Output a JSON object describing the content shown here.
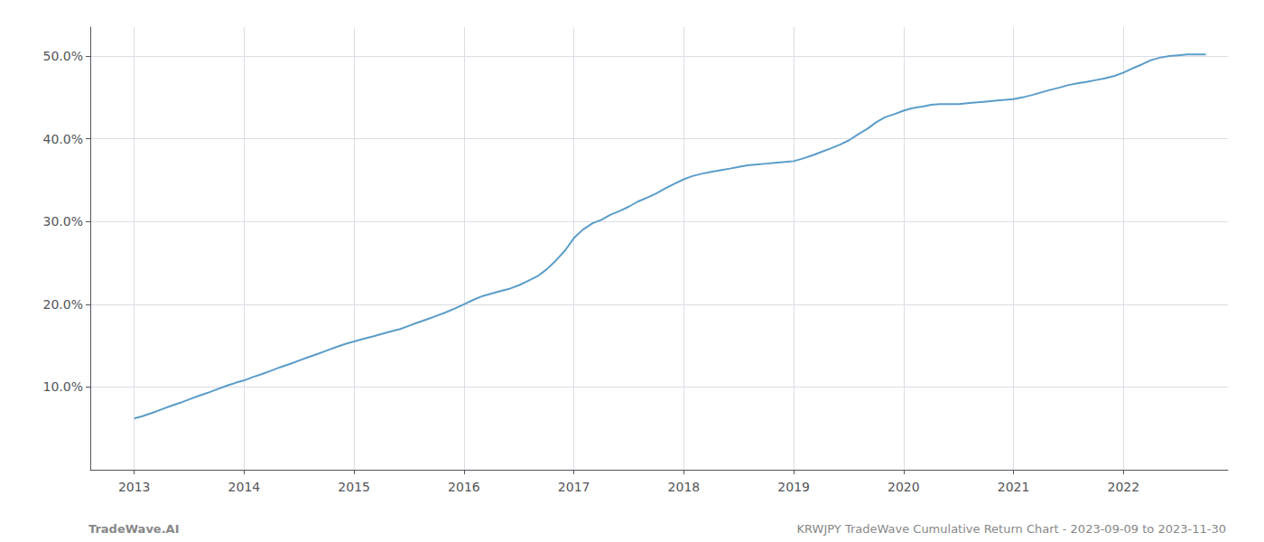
{
  "chart_data": {
    "type": "line",
    "x": [
      2013.0,
      2013.08,
      2013.17,
      2013.25,
      2013.33,
      2013.42,
      2013.5,
      2013.58,
      2013.67,
      2013.75,
      2013.83,
      2013.92,
      2014.0,
      2014.08,
      2014.17,
      2014.25,
      2014.33,
      2014.42,
      2014.5,
      2014.58,
      2014.67,
      2014.75,
      2014.83,
      2014.92,
      2015.0,
      2015.08,
      2015.17,
      2015.25,
      2015.33,
      2015.42,
      2015.5,
      2015.58,
      2015.67,
      2015.75,
      2015.83,
      2015.92,
      2016.0,
      2016.08,
      2016.17,
      2016.25,
      2016.33,
      2016.42,
      2016.5,
      2016.58,
      2016.67,
      2016.75,
      2016.83,
      2016.92,
      2017.0,
      2017.08,
      2017.17,
      2017.25,
      2017.33,
      2017.42,
      2017.5,
      2017.58,
      2017.67,
      2017.75,
      2017.83,
      2017.92,
      2018.0,
      2018.08,
      2018.17,
      2018.25,
      2018.33,
      2018.42,
      2018.5,
      2018.58,
      2018.67,
      2018.75,
      2018.83,
      2018.92,
      2019.0,
      2019.08,
      2019.17,
      2019.25,
      2019.33,
      2019.42,
      2019.5,
      2019.58,
      2019.67,
      2019.75,
      2019.83,
      2019.92,
      2020.0,
      2020.08,
      2020.17,
      2020.25,
      2020.33,
      2020.42,
      2020.5,
      2020.58,
      2020.67,
      2020.75,
      2020.83,
      2020.92,
      2021.0,
      2021.08,
      2021.17,
      2021.25,
      2021.33,
      2021.42,
      2021.5,
      2021.58,
      2021.67,
      2021.75,
      2021.83,
      2021.92,
      2022.0,
      2022.08,
      2022.17,
      2022.25,
      2022.33,
      2022.42,
      2022.5,
      2022.58,
      2022.67,
      2022.75
    ],
    "values": [
      6.2,
      6.5,
      6.9,
      7.3,
      7.7,
      8.1,
      8.5,
      8.9,
      9.3,
      9.7,
      10.1,
      10.5,
      10.8,
      11.2,
      11.6,
      12.0,
      12.4,
      12.8,
      13.2,
      13.6,
      14.0,
      14.4,
      14.8,
      15.2,
      15.5,
      15.8,
      16.1,
      16.4,
      16.7,
      17.0,
      17.4,
      17.8,
      18.2,
      18.6,
      19.0,
      19.5,
      20.0,
      20.5,
      21.0,
      21.3,
      21.6,
      21.9,
      22.3,
      22.8,
      23.4,
      24.2,
      25.2,
      26.5,
      28.0,
      29.0,
      29.8,
      30.2,
      30.8,
      31.3,
      31.8,
      32.4,
      32.9,
      33.4,
      34.0,
      34.6,
      35.1,
      35.5,
      35.8,
      36.0,
      36.2,
      36.4,
      36.6,
      36.8,
      36.9,
      37.0,
      37.1,
      37.2,
      37.3,
      37.6,
      38.0,
      38.4,
      38.8,
      39.3,
      39.8,
      40.5,
      41.2,
      42.0,
      42.6,
      43.0,
      43.4,
      43.7,
      43.9,
      44.1,
      44.2,
      44.2,
      44.2,
      44.3,
      44.4,
      44.5,
      44.6,
      44.7,
      44.8,
      45.0,
      45.3,
      45.6,
      45.9,
      46.2,
      46.5,
      46.7,
      46.9,
      47.1,
      47.3,
      47.6,
      48.0,
      48.5,
      49.0,
      49.5,
      49.8,
      50.0,
      50.1,
      50.2,
      50.2,
      50.2
    ],
    "color": "#5b9dc9",
    "xlim": [
      2012.6,
      2022.95
    ],
    "ylim": [
      0,
      53.5
    ],
    "xticks": [
      2013,
      2014,
      2015,
      2016,
      2017,
      2018,
      2019,
      2020,
      2021,
      2022
    ],
    "yticks": [
      {
        "value": 10.0,
        "label": "10.0%"
      },
      {
        "value": 20.0,
        "label": "20.0%"
      },
      {
        "value": 30.0,
        "label": "30.0%"
      },
      {
        "value": 40.0,
        "label": "40.0%"
      },
      {
        "value": 50.0,
        "label": "50.0%"
      }
    ],
    "grid": true,
    "annotations": [
      "TradeWave.AI",
      "KRWJPY TradeWave Cumulative Return Chart - 2023-09-09 to 2023-11-30"
    ]
  }
}
